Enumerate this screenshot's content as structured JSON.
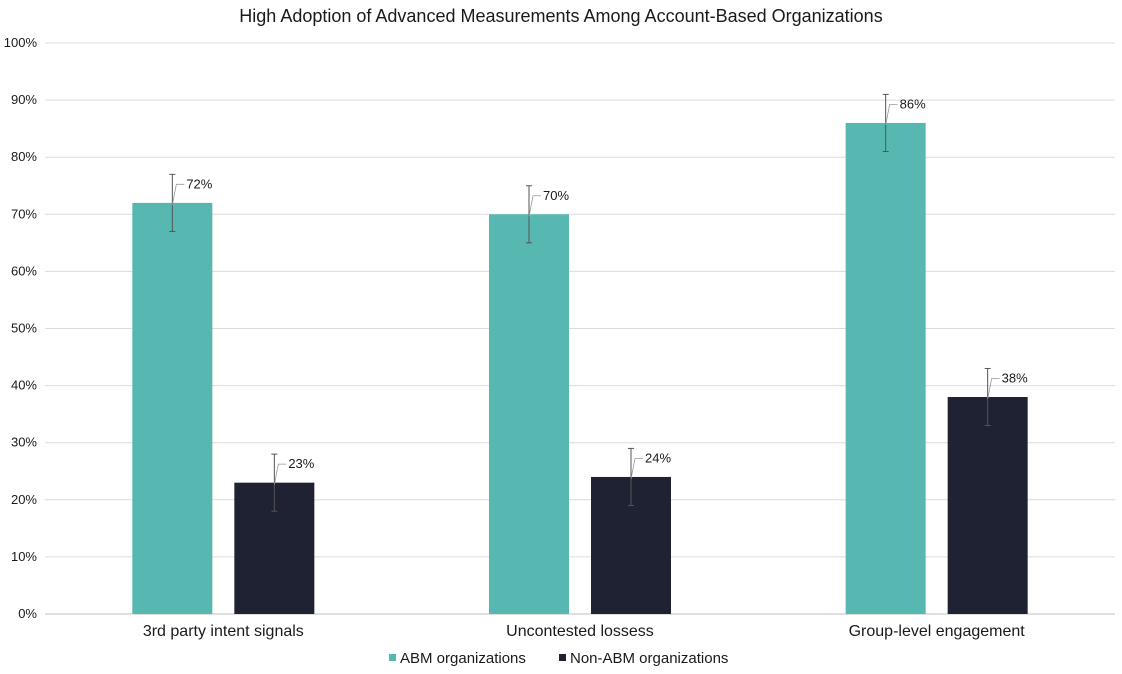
{
  "chart_data": {
    "type": "bar",
    "title": "High Adoption of Advanced Measurements Among Account-Based Organizations",
    "categories": [
      "3rd party intent signals",
      "Uncontested lossess",
      "Group-level engagement"
    ],
    "series": [
      {
        "name": "ABM organizations",
        "color": "#57b8b1",
        "values": [
          72,
          70,
          86
        ],
        "labels": [
          "72%",
          "70%",
          "86%"
        ],
        "error": 5
      },
      {
        "name": "Non-ABM organizations",
        "color": "#1e2233",
        "values": [
          23,
          24,
          38
        ],
        "labels": [
          "23%",
          "24%",
          "38%"
        ],
        "error": 5
      }
    ],
    "ylim": [
      0,
      100
    ],
    "yticks": [
      0,
      10,
      20,
      30,
      40,
      50,
      60,
      70,
      80,
      90,
      100
    ],
    "ytick_labels": [
      "0%",
      "10%",
      "20%",
      "30%",
      "40%",
      "50%",
      "60%",
      "70%",
      "80%",
      "90%",
      "100%"
    ],
    "grid": true,
    "legend_position": "bottom"
  }
}
